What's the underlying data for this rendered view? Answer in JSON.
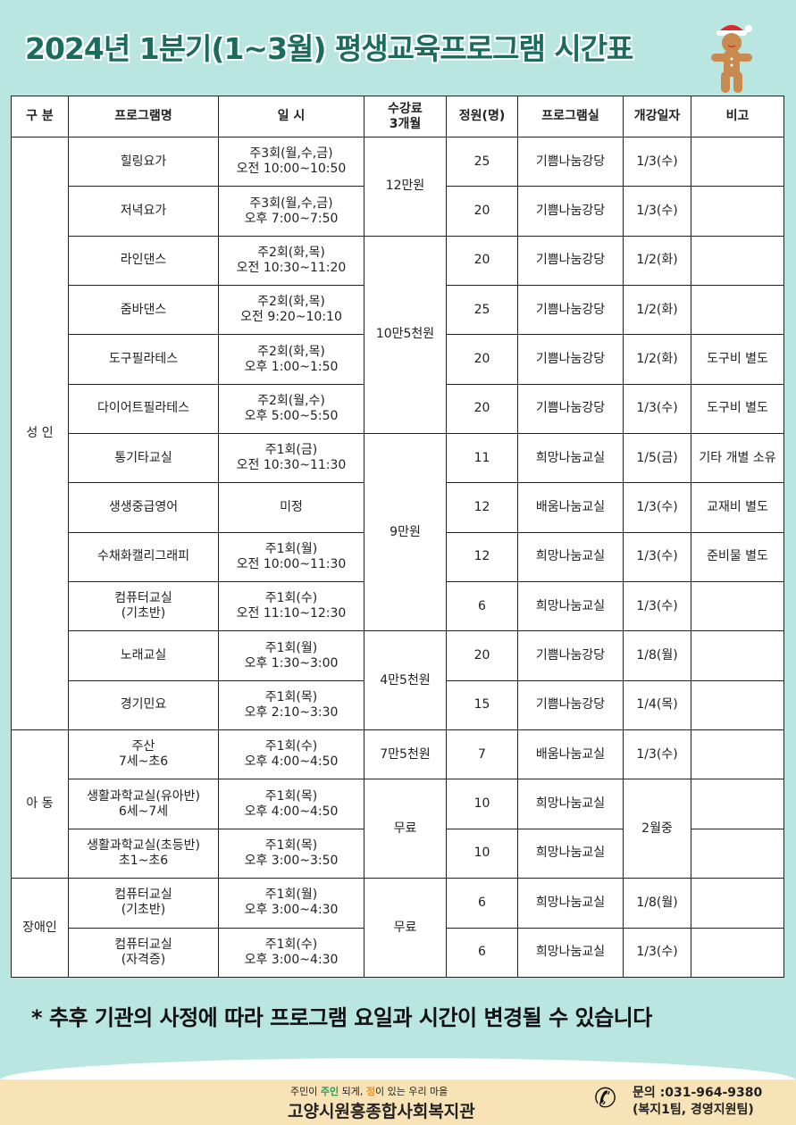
{
  "title": "2024년 1분기(1~3월) 평생교육프로그램 시간표",
  "table": {
    "headers": [
      "구 분",
      "프로그램명",
      "일 시",
      "수강료\n3개월",
      "정원(명)",
      "프로그램실",
      "개강일자",
      "비고"
    ],
    "groups": [
      {
        "label": "성 인",
        "rows": 12
      },
      {
        "label": "아 동",
        "rows": 3
      },
      {
        "label": "장애인",
        "rows": 2
      }
    ],
    "fees": [
      {
        "label": "12만원",
        "rows": 2
      },
      {
        "label": "10만5천원",
        "rows": 4
      },
      {
        "label": "9만원",
        "rows": 4
      },
      {
        "label": "4만5천원",
        "rows": 2
      },
      {
        "label": "7만5천원",
        "rows": 1
      },
      {
        "label": "무료",
        "rows": 2
      },
      {
        "label": "무료",
        "rows": 2
      }
    ],
    "rows": [
      {
        "name": "힐링요가",
        "time": "주3회(월,수,금)\n오전 10:00~10:50",
        "cap": "25",
        "room": "기쁨나눔강당",
        "start": "1/3(수)",
        "note": ""
      },
      {
        "name": "저녁요가",
        "time": "주3회(월,수,금)\n오후 7:00~7:50",
        "cap": "20",
        "room": "기쁨나눔강당",
        "start": "1/3(수)",
        "note": ""
      },
      {
        "name": "라인댄스",
        "time": "주2회(화,목)\n오전 10:30~11:20",
        "cap": "20",
        "room": "기쁨나눔강당",
        "start": "1/2(화)",
        "note": ""
      },
      {
        "name": "줌바댄스",
        "time": "주2회(화,목)\n오전 9:20~10:10",
        "cap": "25",
        "room": "기쁨나눔강당",
        "start": "1/2(화)",
        "note": ""
      },
      {
        "name": "도구필라테스",
        "time": "주2회(화,목)\n오후 1:00~1:50",
        "cap": "20",
        "room": "기쁨나눔강당",
        "start": "1/2(화)",
        "note": "도구비 별도"
      },
      {
        "name": "다이어트필라테스",
        "time": "주2회(월,수)\n오후 5:00~5:50",
        "cap": "20",
        "room": "기쁨나눔강당",
        "start": "1/3(수)",
        "note": "도구비 별도"
      },
      {
        "name": "통기타교실",
        "time": "주1회(금)\n오전 10:30~11:30",
        "cap": "11",
        "room": "희망나눔교실",
        "start": "1/5(금)",
        "note": "기타 개별 소유"
      },
      {
        "name": "생생중급영어",
        "time": "미정",
        "cap": "12",
        "room": "배움나눔교실",
        "start": "1/3(수)",
        "note": "교재비 별도"
      },
      {
        "name": "수채화캘리그래피",
        "time": "주1회(월)\n오전 10:00~11:30",
        "cap": "12",
        "room": "희망나눔교실",
        "start": "1/3(수)",
        "note": "준비물 별도"
      },
      {
        "name": "컴퓨터교실\n(기초반)",
        "time": "주1회(수)\n오전 11:10~12:30",
        "cap": "6",
        "room": "희망나눔교실",
        "start": "1/3(수)",
        "note": ""
      },
      {
        "name": "노래교실",
        "time": "주1회(월)\n오후 1:30~3:00",
        "cap": "20",
        "room": "기쁨나눔강당",
        "start": "1/8(월)",
        "note": ""
      },
      {
        "name": "경기민요",
        "time": "주1회(목)\n오후 2:10~3:30",
        "cap": "15",
        "room": "기쁨나눔강당",
        "start": "1/4(목)",
        "note": ""
      },
      {
        "name": "주산\n7세~초6",
        "time": "주1회(수)\n오후 4:00~4:50",
        "cap": "7",
        "room": "배움나눔교실",
        "start": "1/3(수)",
        "note": ""
      },
      {
        "name": "생활과학교실(유아반)\n6세~7세",
        "time": "주1회(목)\n오후 4:00~4:50",
        "cap": "10",
        "room": "희망나눔교실",
        "start": "2월중",
        "startRows": 2,
        "note": ""
      },
      {
        "name": "생활과학교실(초등반)\n초1~초6",
        "time": "주1회(목)\n오후 3:00~3:50",
        "cap": "10",
        "room": "희망나눔교실",
        "start": null,
        "note": ""
      },
      {
        "name": "컴퓨터교실\n(기초반)",
        "time": "주1회(월)\n오후 3:00~4:30",
        "cap": "6",
        "room": "희망나눔교실",
        "start": "1/8(월)",
        "note": ""
      },
      {
        "name": "컴퓨터교실\n(자격증)",
        "time": "주1회(수)\n오후 3:00~4:30",
        "cap": "6",
        "room": "희망나눔교실",
        "start": "1/3(수)",
        "note": ""
      }
    ]
  },
  "notice": "* 추후 기관의 사정에 따라 프로그램 요일과 시간이 변경될 수 있습니다",
  "footer": {
    "slogan_1": "주민이 ",
    "slogan_2": "주인",
    "slogan_3": " 되게, ",
    "slogan_4": "정",
    "slogan_5": "이 있는 우리 마을",
    "org": "고양시원흥종합사회복지관",
    "contact_1": "문의 :031-964-9380",
    "contact_2": "(복지1팀, 경영지원팀)",
    "phone_icon": "phone-icon"
  },
  "colors": {
    "background": "#b9e6e1",
    "title": "#1b6b5e",
    "footer": "#f7e3b5"
  }
}
